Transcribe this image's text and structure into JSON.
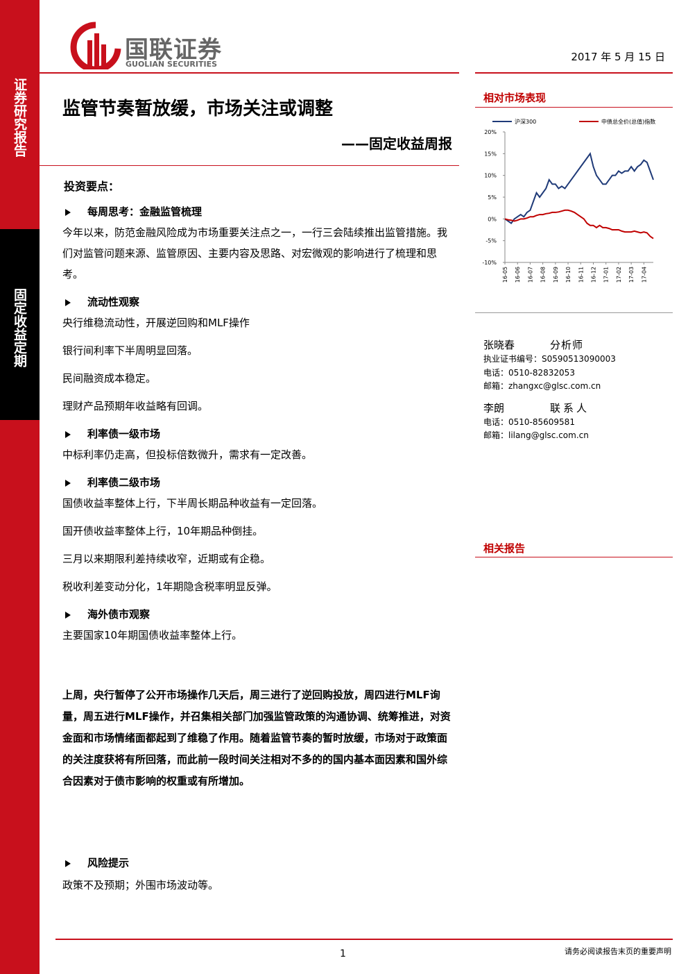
{
  "header": {
    "logo_cn": "国联证券",
    "logo_en": "GUOLIAN SECURITIES",
    "date": "2017 年 5 月 15 日"
  },
  "sidebar": {
    "top": "证券研究报告",
    "middle": "固定收益定期"
  },
  "title": "监管节奏暂放缓，市场关注或调整",
  "subtitle": "——固定收益周报",
  "key_points": "投资要点：",
  "sections": [
    {
      "heading": "每周思考：金融监管梳理",
      "paragraphs": [
        "今年以来，防范金融风险成为市场重要关注点之一，一行三会陆续推出监管措施。我们对监管问题来源、监管原因、主要内容及思路、对宏微观的影响进行了梳理和思考。"
      ]
    },
    {
      "heading": "流动性观察",
      "paragraphs": [
        "央行维稳流动性，开展逆回购和MLF操作",
        "银行间利率下半周明显回落。",
        "民间融资成本稳定。",
        "理财产品预期年收益略有回调。"
      ]
    },
    {
      "heading": "利率债一级市场",
      "paragraphs": [
        "中标利率仍走高，但投标倍数微升，需求有一定改善。"
      ]
    },
    {
      "heading": "利率债二级市场",
      "paragraphs": [
        "国债收益率整体上行，下半周长期品种收益有一定回落。",
        "国开债收益率整体上行，10年期品种倒挂。",
        "三月以来期限利差持续收窄，近期或有企稳。",
        "税收利差变动分化，1年期隐含税率明显反弹。"
      ]
    },
    {
      "heading": "海外债市观察",
      "paragraphs": [
        "主要国家10年期国债收益率整体上行。"
      ]
    }
  ],
  "summary": "上周，央行暂停了公开市场操作几天后，周三进行了逆回购投放，周四进行MLF询量，周五进行MLF操作，并召集相关部门加强监管政策的沟通协调、统筹推进，对资金面和市场情绪面都起到了维稳了作用。随着监管节奏的暂时放缓，市场对于政策面的关注度获将有所回落，而此前一段时间关注相对不多的的国内基本面因素和国外综合因素对于债市影响的权重或有所增加。",
  "risk": {
    "heading": "风险提示",
    "text": "政策不及预期；外围市场波动等。"
  },
  "sidebar_right": {
    "chart_heading": "相对市场表现",
    "related": "相关报告",
    "analysts": [
      {
        "name": "张晓春",
        "role": "分析师",
        "lines": [
          "执业证书编号：S0590513090003",
          "电话：0510-82832053",
          "邮箱：zhangxc@glsc.com.cn"
        ]
      },
      {
        "name": "李朗",
        "role": "联系人",
        "lines": [
          "电话：0510-85609581",
          "邮箱：lilang@glsc.com.cn"
        ]
      }
    ]
  },
  "footer": {
    "page": "1",
    "note": "请务必阅读报告末页的重要声明"
  },
  "chart_data": {
    "type": "line",
    "categories": [
      "16-05",
      null,
      null,
      null,
      "16-06",
      null,
      null,
      null,
      "16-07",
      null,
      null,
      null,
      "16-08",
      null,
      null,
      null,
      "16-09",
      null,
      null,
      null,
      "16-10",
      null,
      null,
      null,
      "16-11",
      null,
      null,
      null,
      "16-12",
      null,
      null,
      null,
      "17-01",
      null,
      null,
      null,
      "17-02",
      null,
      null,
      null,
      "17-03",
      null,
      null,
      null,
      "17-04",
      null,
      null,
      null
    ],
    "series": [
      {
        "name": "沪深300",
        "color": "#1f3a78",
        "values": [
          0,
          -0.5,
          -1,
          0,
          0.5,
          1,
          0.5,
          1.5,
          2,
          4,
          6,
          5,
          6,
          7,
          9,
          8,
          8,
          7,
          7.5,
          7,
          8,
          9,
          10,
          11,
          12,
          13,
          14,
          15,
          12,
          10,
          9,
          8,
          8,
          9,
          10,
          10,
          11,
          10.5,
          11,
          11,
          12,
          11,
          12,
          12.5,
          13.5,
          13,
          11,
          9
        ]
      },
      {
        "name": "中债总全价(总值)指数",
        "color": "#c00000",
        "values": [
          0,
          -0.2,
          -0.3,
          -0.5,
          -0.3,
          0,
          0,
          0.2,
          0.5,
          0.5,
          0.8,
          1,
          1,
          1.2,
          1.3,
          1.5,
          1.5,
          1.6,
          1.8,
          2,
          2,
          1.8,
          1.5,
          1,
          0.5,
          0,
          -1,
          -1.5,
          -1.5,
          -2,
          -1.5,
          -2,
          -2,
          -2.2,
          -2.5,
          -2.5,
          -2.5,
          -2.8,
          -3,
          -3,
          -3,
          -2.8,
          -3,
          -3.2,
          -3,
          -3.2,
          -4,
          -4.5
        ]
      }
    ],
    "ylim": [
      -10,
      20
    ],
    "yticks": [
      {
        "value": -10,
        "label": "-10%"
      },
      {
        "value": -5,
        "label": "-5%"
      },
      {
        "value": 0,
        "label": "0%"
      },
      {
        "value": 5,
        "label": "5%"
      },
      {
        "value": 10,
        "label": "10%"
      },
      {
        "value": 15,
        "label": "15%"
      },
      {
        "value": 20,
        "label": "20%"
      }
    ]
  }
}
